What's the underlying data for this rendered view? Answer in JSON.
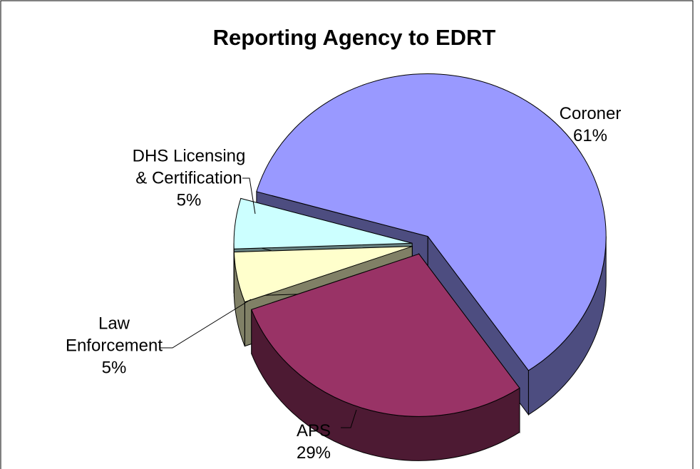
{
  "chart_data": {
    "type": "pie3d",
    "title": "Reporting Agency to EDRT",
    "categories": [
      "Coroner",
      "APS",
      "Law Enforcement",
      "DHS Licensing & Certification"
    ],
    "values": [
      61,
      29,
      5,
      5
    ],
    "value_labels": [
      "61%",
      "29%",
      "5%",
      "5%"
    ],
    "colors": [
      "#9999ff",
      "#993366",
      "#ffffcc",
      "#ccffff"
    ]
  }
}
